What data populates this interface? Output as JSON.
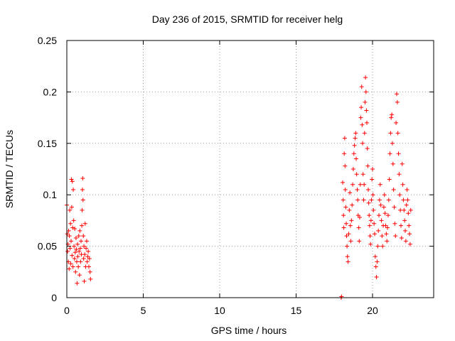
{
  "chart_data": {
    "type": "scatter",
    "title": "Day 236 of 2015, SRMTID for receiver helg",
    "xlabel": "GPS time / hours",
    "ylabel": "SRMTID / TECUs",
    "xlim": [
      0,
      24
    ],
    "ylim": [
      0,
      0.25
    ],
    "grid": true,
    "marker": "+",
    "color": "#ff0000",
    "xticks": [
      0,
      5,
      10,
      15,
      20
    ],
    "xtick_labels": [
      "0",
      "5",
      "10",
      "15",
      "20"
    ],
    "yticks": [
      0,
      0.05,
      0.1,
      0.15,
      0.2,
      0.25
    ],
    "ytick_labels": [
      "0",
      "0.05",
      "0.1",
      "0.15",
      "0.2",
      "0.25"
    ],
    "series": [
      {
        "name": "SRMTID",
        "points": [
          [
            0.0,
            0.09
          ],
          [
            0.03,
            0.062
          ],
          [
            0.05,
            0.045
          ],
          [
            0.08,
            0.052
          ],
          [
            0.1,
            0.035
          ],
          [
            0.12,
            0.065
          ],
          [
            0.15,
            0.028
          ],
          [
            0.17,
            0.06
          ],
          [
            0.19,
            0.085
          ],
          [
            0.21,
            0.048
          ],
          [
            0.24,
            0.072
          ],
          [
            0.26,
            0.033
          ],
          [
            0.28,
            0.055
          ],
          [
            0.3,
            0.115
          ],
          [
            0.32,
            0.088
          ],
          [
            0.34,
            0.041
          ],
          [
            0.36,
            0.113
          ],
          [
            0.38,
            0.068
          ],
          [
            0.4,
            0.03
          ],
          [
            0.42,
            0.105
          ],
          [
            0.45,
            0.075
          ],
          [
            0.47,
            0.05
          ],
          [
            0.5,
            0.038
          ],
          [
            0.52,
            0.067
          ],
          [
            0.55,
            0.044
          ],
          [
            0.57,
            0.025
          ],
          [
            0.6,
            0.058
          ],
          [
            0.62,
            0.047
          ],
          [
            0.65,
            0.035
          ],
          [
            0.67,
            0.014
          ],
          [
            0.7,
            0.052
          ],
          [
            0.72,
            0.04
          ],
          [
            0.75,
            0.03
          ],
          [
            0.78,
            0.06
          ],
          [
            0.8,
            0.045
          ],
          [
            0.83,
            0.022
          ],
          [
            0.85,
            0.065
          ],
          [
            0.88,
            0.048
          ],
          [
            0.9,
            0.035
          ],
          [
            0.93,
            0.055
          ],
          [
            0.95,
            0.042
          ],
          [
            0.98,
            0.07
          ],
          [
            1.0,
            0.085
          ],
          [
            1.02,
            0.105
          ],
          [
            1.04,
            0.116
          ],
          [
            1.06,
            0.095
          ],
          [
            1.08,
            0.06
          ],
          [
            1.1,
            0.038
          ],
          [
            1.12,
            0.05
          ],
          [
            1.14,
            0.016
          ],
          [
            1.17,
            0.042
          ],
          [
            1.2,
            0.072
          ],
          [
            1.23,
            0.03
          ],
          [
            1.26,
            0.048
          ],
          [
            1.3,
            0.055
          ],
          [
            1.33,
            0.035
          ],
          [
            1.37,
            0.04
          ],
          [
            1.4,
            0.045
          ],
          [
            1.44,
            0.03
          ],
          [
            1.48,
            0.038
          ],
          [
            1.52,
            0.025
          ],
          [
            1.55,
            0.018
          ],
          [
            17.95,
            0.0
          ],
          [
            17.97,
            0.001
          ],
          [
            18.05,
            0.112
          ],
          [
            18.08,
            0.095
          ],
          [
            18.1,
            0.08
          ],
          [
            18.12,
            0.068
          ],
          [
            18.15,
            0.14
          ],
          [
            18.18,
            0.155
          ],
          [
            18.2,
            0.128
          ],
          [
            18.22,
            0.105
          ],
          [
            18.25,
            0.088
          ],
          [
            18.28,
            0.072
          ],
          [
            18.3,
            0.06
          ],
          [
            18.33,
            0.05
          ],
          [
            18.36,
            0.04
          ],
          [
            18.4,
            0.035
          ],
          [
            18.44,
            0.062
          ],
          [
            18.48,
            0.085
          ],
          [
            18.52,
            0.102
          ],
          [
            18.55,
            0.07
          ],
          [
            18.58,
            0.055
          ],
          [
            18.62,
            0.075
          ],
          [
            18.66,
            0.09
          ],
          [
            18.7,
            0.11
          ],
          [
            18.74,
            0.125
          ],
          [
            18.78,
            0.14
          ],
          [
            18.82,
            0.148
          ],
          [
            18.86,
            0.155
          ],
          [
            18.9,
            0.16
          ],
          [
            18.93,
            0.135
          ],
          [
            18.96,
            0.12
          ],
          [
            19.0,
            0.105
          ],
          [
            19.03,
            0.095
          ],
          [
            19.06,
            0.08
          ],
          [
            19.1,
            0.068
          ],
          [
            19.13,
            0.055
          ],
          [
            19.16,
            0.078
          ],
          [
            19.2,
            0.11
          ],
          [
            19.23,
            0.175
          ],
          [
            19.26,
            0.185
          ],
          [
            19.29,
            0.205
          ],
          [
            19.32,
            0.168
          ],
          [
            19.35,
            0.15
          ],
          [
            19.38,
            0.12
          ],
          [
            19.42,
            0.095
          ],
          [
            19.45,
            0.11
          ],
          [
            19.48,
            0.16
          ],
          [
            19.51,
            0.19
          ],
          [
            19.54,
            0.214
          ],
          [
            19.57,
            0.2
          ],
          [
            19.6,
            0.182
          ],
          [
            19.63,
            0.17
          ],
          [
            19.66,
            0.145
          ],
          [
            19.69,
            0.128
          ],
          [
            19.72,
            0.105
          ],
          [
            19.75,
            0.092
          ],
          [
            19.78,
            0.08
          ],
          [
            19.81,
            0.07
          ],
          [
            19.84,
            0.06
          ],
          [
            19.87,
            0.052
          ],
          [
            19.9,
            0.075
          ],
          [
            19.93,
            0.095
          ],
          [
            19.96,
            0.115
          ],
          [
            20.0,
            0.125
          ],
          [
            20.03,
            0.1
          ],
          [
            20.06,
            0.085
          ],
          [
            20.1,
            0.072
          ],
          [
            20.14,
            0.062
          ],
          [
            20.18,
            0.04
          ],
          [
            20.22,
            0.03
          ],
          [
            20.26,
            0.02
          ],
          [
            20.3,
            0.035
          ],
          [
            20.34,
            0.05
          ],
          [
            20.38,
            0.065
          ],
          [
            20.42,
            0.08
          ],
          [
            20.46,
            0.095
          ],
          [
            20.5,
            0.11
          ],
          [
            20.54,
            0.09
          ],
          [
            20.58,
            0.075
          ],
          [
            20.62,
            0.06
          ],
          [
            20.66,
            0.05
          ],
          [
            20.7,
            0.07
          ],
          [
            20.74,
            0.088
          ],
          [
            20.78,
            0.1
          ],
          [
            20.82,
            0.082
          ],
          [
            20.86,
            0.07
          ],
          [
            20.9,
            0.062
          ],
          [
            20.94,
            0.055
          ],
          [
            20.98,
            0.068
          ],
          [
            21.02,
            0.08
          ],
          [
            21.06,
            0.095
          ],
          [
            21.1,
            0.115
          ],
          [
            21.14,
            0.14
          ],
          [
            21.18,
            0.16
          ],
          [
            21.22,
            0.175
          ],
          [
            21.26,
            0.178
          ],
          [
            21.3,
            0.15
          ],
          [
            21.34,
            0.13
          ],
          [
            21.38,
            0.105
          ],
          [
            21.42,
            0.088
          ],
          [
            21.46,
            0.072
          ],
          [
            21.5,
            0.06
          ],
          [
            21.54,
            0.17
          ],
          [
            21.58,
            0.198
          ],
          [
            21.62,
            0.19
          ],
          [
            21.66,
            0.16
          ],
          [
            21.7,
            0.14
          ],
          [
            21.74,
            0.12
          ],
          [
            21.78,
            0.1
          ],
          [
            21.82,
            0.085
          ],
          [
            21.86,
            0.07
          ],
          [
            21.9,
            0.058
          ],
          [
            21.94,
            0.13
          ],
          [
            21.98,
            0.11
          ],
          [
            22.02,
            0.095
          ],
          [
            22.06,
            0.085
          ],
          [
            22.1,
            0.075
          ],
          [
            22.14,
            0.065
          ],
          [
            22.18,
            0.055
          ],
          [
            22.22,
            0.09
          ],
          [
            22.26,
            0.105
          ],
          [
            22.3,
            0.095
          ],
          [
            22.34,
            0.082
          ],
          [
            22.38,
            0.07
          ],
          [
            22.42,
            0.062
          ],
          [
            22.46,
            0.052
          ],
          [
            22.5,
            0.085
          ]
        ]
      }
    ]
  }
}
